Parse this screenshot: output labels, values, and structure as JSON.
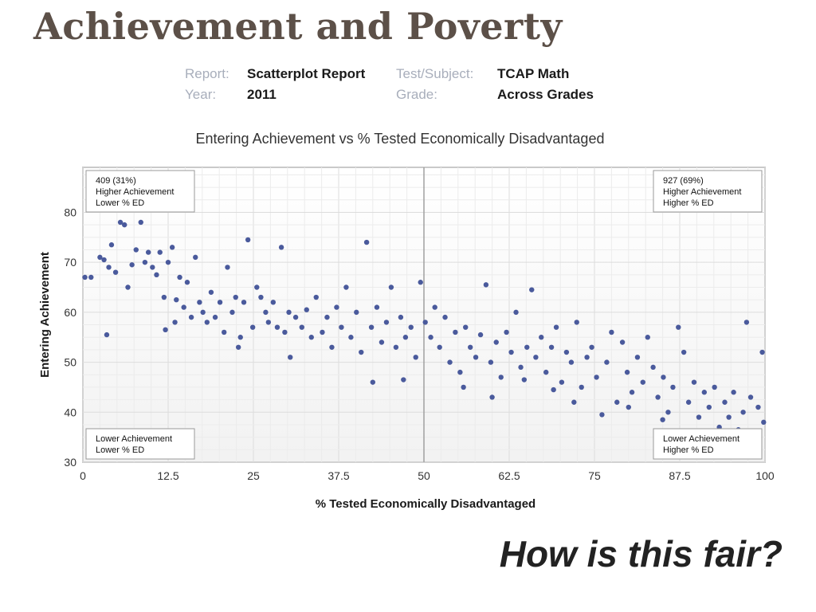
{
  "slide": {
    "title": "Achievement and Poverty",
    "tagline": "How is this fair?"
  },
  "report_meta": {
    "report_label": "Report:",
    "report_value": "Scatterplot Report",
    "year_label": "Year:",
    "year_value": "2011",
    "subject_label": "Test/Subject:",
    "subject_value": "TCAP Math",
    "grade_label": "Grade:",
    "grade_value": "Across Grades"
  },
  "chart_data": {
    "type": "scatter",
    "title": "Entering Achievement vs % Tested Economically Disadvantaged",
    "xlabel": "% Tested Economically Disadvantaged",
    "ylabel": "Entering Achievement",
    "xlim": [
      0,
      100
    ],
    "ylim": [
      30,
      89
    ],
    "xticks": [
      0,
      12.5,
      25,
      37.5,
      50,
      62.5,
      75,
      87.5,
      100
    ],
    "xtick_labels": [
      "0",
      "12.5",
      "25",
      "37.5",
      "50",
      "62.5",
      "75",
      "87.5",
      "100"
    ],
    "yticks": [
      30,
      40,
      50,
      60,
      70,
      80
    ],
    "ytick_labels": [
      "30",
      "40",
      "50",
      "60",
      "70",
      "80"
    ],
    "grid": true,
    "divider_x": 50,
    "point_color": "#4a5a9c",
    "quadrant_labels": [
      {
        "position": "top-left",
        "lines": [
          "409 (31%)",
          "Higher Achievement",
          "Lower % ED"
        ]
      },
      {
        "position": "top-right",
        "lines": [
          "927 (69%)",
          "Higher Achievement",
          "Higher % ED"
        ]
      },
      {
        "position": "bottom-left",
        "lines": [
          "Lower Achievement",
          "Lower % ED"
        ]
      },
      {
        "position": "bottom-right",
        "lines": [
          "Lower Achievement",
          "Higher % ED"
        ]
      }
    ],
    "points": [
      [
        0.3,
        67
      ],
      [
        1.2,
        67
      ],
      [
        2.5,
        71
      ],
      [
        3.1,
        70.5
      ],
      [
        3.8,
        69
      ],
      [
        4.2,
        73.5
      ],
      [
        4.8,
        68
      ],
      [
        5.5,
        78
      ],
      [
        6.1,
        77.5
      ],
      [
        6.6,
        65
      ],
      [
        7.2,
        69.5
      ],
      [
        7.8,
        72.5
      ],
      [
        8.5,
        78
      ],
      [
        9.1,
        70
      ],
      [
        9.6,
        72
      ],
      [
        10.2,
        69
      ],
      [
        10.8,
        67.5
      ],
      [
        11.3,
        72
      ],
      [
        11.9,
        63
      ],
      [
        12.5,
        70
      ],
      [
        13.1,
        73
      ],
      [
        13.7,
        62.5
      ],
      [
        14.2,
        67
      ],
      [
        14.8,
        61
      ],
      [
        15.3,
        66
      ],
      [
        15.9,
        59
      ],
      [
        16.5,
        71
      ],
      [
        17.1,
        62
      ],
      [
        17.6,
        60
      ],
      [
        18.2,
        58
      ],
      [
        18.8,
        64
      ],
      [
        19.4,
        59
      ],
      [
        20.1,
        62
      ],
      [
        20.7,
        56
      ],
      [
        21.2,
        69
      ],
      [
        21.9,
        60
      ],
      [
        22.4,
        63
      ],
      [
        23.1,
        55
      ],
      [
        23.6,
        62
      ],
      [
        24.2,
        74.5
      ],
      [
        24.9,
        57
      ],
      [
        25.5,
        65
      ],
      [
        26.1,
        63
      ],
      [
        26.8,
        60
      ],
      [
        27.2,
        58
      ],
      [
        27.9,
        62
      ],
      [
        28.5,
        57
      ],
      [
        29.1,
        73
      ],
      [
        29.6,
        56
      ],
      [
        30.2,
        60
      ],
      [
        3.5,
        55.5
      ],
      [
        12.1,
        56.5
      ],
      [
        13.5,
        58
      ],
      [
        22.8,
        53
      ],
      [
        30.4,
        51
      ],
      [
        31.2,
        59
      ],
      [
        32.1,
        57
      ],
      [
        32.8,
        60.5
      ],
      [
        33.5,
        55
      ],
      [
        34.2,
        63
      ],
      [
        35.1,
        56
      ],
      [
        35.8,
        59
      ],
      [
        36.5,
        53
      ],
      [
        37.2,
        61
      ],
      [
        37.9,
        57
      ],
      [
        38.6,
        65
      ],
      [
        39.3,
        55
      ],
      [
        40.1,
        60
      ],
      [
        40.8,
        52
      ],
      [
        41.6,
        74
      ],
      [
        42.3,
        57
      ],
      [
        43.1,
        61
      ],
      [
        43.8,
        54
      ],
      [
        44.5,
        58
      ],
      [
        45.2,
        65
      ],
      [
        45.9,
        53
      ],
      [
        46.6,
        59
      ],
      [
        47.3,
        55
      ],
      [
        48.1,
        57
      ],
      [
        48.8,
        51
      ],
      [
        49.5,
        66
      ],
      [
        50.2,
        58
      ],
      [
        51.0,
        55
      ],
      [
        51.6,
        61
      ],
      [
        52.3,
        53
      ],
      [
        53.1,
        59
      ],
      [
        53.8,
        50
      ],
      [
        54.6,
        56
      ],
      [
        55.3,
        48
      ],
      [
        56.1,
        57
      ],
      [
        56.8,
        53
      ],
      [
        57.6,
        51
      ],
      [
        58.3,
        55.5
      ],
      [
        59.1,
        65.5
      ],
      [
        59.8,
        50
      ],
      [
        60.6,
        54
      ],
      [
        61.3,
        47
      ],
      [
        62.1,
        56
      ],
      [
        62.8,
        52
      ],
      [
        63.5,
        60
      ],
      [
        64.2,
        49
      ],
      [
        65.1,
        53
      ],
      [
        65.8,
        64.5
      ],
      [
        66.4,
        51
      ],
      [
        67.2,
        55
      ],
      [
        67.9,
        48
      ],
      [
        68.7,
        53
      ],
      [
        69.4,
        57
      ],
      [
        70.2,
        46
      ],
      [
        70.9,
        52
      ],
      [
        71.6,
        50
      ],
      [
        72.4,
        58
      ],
      [
        73.1,
        45
      ],
      [
        73.9,
        51
      ],
      [
        74.6,
        53
      ],
      [
        75.3,
        47
      ],
      [
        76.1,
        39.5
      ],
      [
        76.8,
        50
      ],
      [
        77.5,
        56
      ],
      [
        78.3,
        42
      ],
      [
        79.1,
        54
      ],
      [
        79.8,
        48
      ],
      [
        80.5,
        44
      ],
      [
        81.3,
        51
      ],
      [
        82.1,
        46
      ],
      [
        82.8,
        55
      ],
      [
        83.6,
        49
      ],
      [
        84.3,
        43
      ],
      [
        85.1,
        47
      ],
      [
        85.8,
        40
      ],
      [
        86.5,
        45
      ],
      [
        87.3,
        57
      ],
      [
        88.1,
        52
      ],
      [
        88.8,
        42
      ],
      [
        89.6,
        46
      ],
      [
        90.3,
        39
      ],
      [
        91.1,
        44
      ],
      [
        91.8,
        41
      ],
      [
        92.6,
        45
      ],
      [
        93.3,
        37
      ],
      [
        94.1,
        42
      ],
      [
        94.7,
        39
      ],
      [
        95.4,
        44
      ],
      [
        96.1,
        36.5
      ],
      [
        96.8,
        40
      ],
      [
        97.3,
        58
      ],
      [
        97.9,
        43
      ],
      [
        98.4,
        35.5
      ],
      [
        99.0,
        41
      ],
      [
        99.6,
        52
      ],
      [
        99.8,
        38
      ],
      [
        42.5,
        46
      ],
      [
        47.0,
        46.5
      ],
      [
        55.8,
        45
      ],
      [
        60.0,
        43
      ],
      [
        64.7,
        46.5
      ],
      [
        69.0,
        44.5
      ],
      [
        72.0,
        42
      ],
      [
        80.0,
        41
      ],
      [
        85.0,
        38.5
      ]
    ]
  }
}
